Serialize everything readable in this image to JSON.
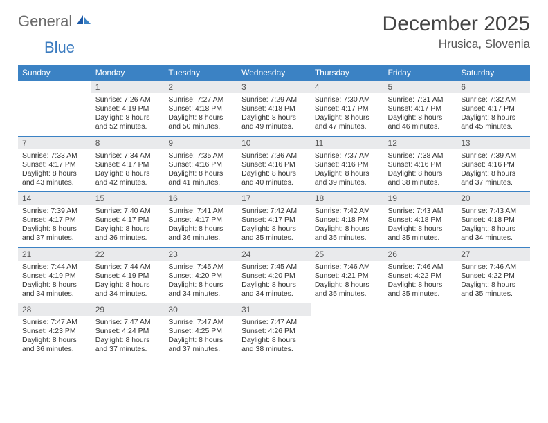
{
  "logo": {
    "general": "General",
    "blue": "Blue"
  },
  "title": "December 2025",
  "location": "Hrusica, Slovenia",
  "headers": [
    "Sunday",
    "Monday",
    "Tuesday",
    "Wednesday",
    "Thursday",
    "Friday",
    "Saturday"
  ],
  "colors": {
    "header_bg": "#3b82c4",
    "header_text": "#ffffff",
    "daynum_bg": "#e9eaec",
    "border": "#3b82c4",
    "logo_gray": "#6b6b6b",
    "logo_blue": "#3b7bbf"
  },
  "first_weekday_index": 1,
  "days": [
    {
      "n": 1,
      "sr": "7:26 AM",
      "ss": "4:19 PM",
      "dl": "8 hours and 52 minutes."
    },
    {
      "n": 2,
      "sr": "7:27 AM",
      "ss": "4:18 PM",
      "dl": "8 hours and 50 minutes."
    },
    {
      "n": 3,
      "sr": "7:29 AM",
      "ss": "4:18 PM",
      "dl": "8 hours and 49 minutes."
    },
    {
      "n": 4,
      "sr": "7:30 AM",
      "ss": "4:17 PM",
      "dl": "8 hours and 47 minutes."
    },
    {
      "n": 5,
      "sr": "7:31 AM",
      "ss": "4:17 PM",
      "dl": "8 hours and 46 minutes."
    },
    {
      "n": 6,
      "sr": "7:32 AM",
      "ss": "4:17 PM",
      "dl": "8 hours and 45 minutes."
    },
    {
      "n": 7,
      "sr": "7:33 AM",
      "ss": "4:17 PM",
      "dl": "8 hours and 43 minutes."
    },
    {
      "n": 8,
      "sr": "7:34 AM",
      "ss": "4:17 PM",
      "dl": "8 hours and 42 minutes."
    },
    {
      "n": 9,
      "sr": "7:35 AM",
      "ss": "4:16 PM",
      "dl": "8 hours and 41 minutes."
    },
    {
      "n": 10,
      "sr": "7:36 AM",
      "ss": "4:16 PM",
      "dl": "8 hours and 40 minutes."
    },
    {
      "n": 11,
      "sr": "7:37 AM",
      "ss": "4:16 PM",
      "dl": "8 hours and 39 minutes."
    },
    {
      "n": 12,
      "sr": "7:38 AM",
      "ss": "4:16 PM",
      "dl": "8 hours and 38 minutes."
    },
    {
      "n": 13,
      "sr": "7:39 AM",
      "ss": "4:16 PM",
      "dl": "8 hours and 37 minutes."
    },
    {
      "n": 14,
      "sr": "7:39 AM",
      "ss": "4:17 PM",
      "dl": "8 hours and 37 minutes."
    },
    {
      "n": 15,
      "sr": "7:40 AM",
      "ss": "4:17 PM",
      "dl": "8 hours and 36 minutes."
    },
    {
      "n": 16,
      "sr": "7:41 AM",
      "ss": "4:17 PM",
      "dl": "8 hours and 36 minutes."
    },
    {
      "n": 17,
      "sr": "7:42 AM",
      "ss": "4:17 PM",
      "dl": "8 hours and 35 minutes."
    },
    {
      "n": 18,
      "sr": "7:42 AM",
      "ss": "4:18 PM",
      "dl": "8 hours and 35 minutes."
    },
    {
      "n": 19,
      "sr": "7:43 AM",
      "ss": "4:18 PM",
      "dl": "8 hours and 35 minutes."
    },
    {
      "n": 20,
      "sr": "7:43 AM",
      "ss": "4:18 PM",
      "dl": "8 hours and 34 minutes."
    },
    {
      "n": 21,
      "sr": "7:44 AM",
      "ss": "4:19 PM",
      "dl": "8 hours and 34 minutes."
    },
    {
      "n": 22,
      "sr": "7:44 AM",
      "ss": "4:19 PM",
      "dl": "8 hours and 34 minutes."
    },
    {
      "n": 23,
      "sr": "7:45 AM",
      "ss": "4:20 PM",
      "dl": "8 hours and 34 minutes."
    },
    {
      "n": 24,
      "sr": "7:45 AM",
      "ss": "4:20 PM",
      "dl": "8 hours and 34 minutes."
    },
    {
      "n": 25,
      "sr": "7:46 AM",
      "ss": "4:21 PM",
      "dl": "8 hours and 35 minutes."
    },
    {
      "n": 26,
      "sr": "7:46 AM",
      "ss": "4:22 PM",
      "dl": "8 hours and 35 minutes."
    },
    {
      "n": 27,
      "sr": "7:46 AM",
      "ss": "4:22 PM",
      "dl": "8 hours and 35 minutes."
    },
    {
      "n": 28,
      "sr": "7:47 AM",
      "ss": "4:23 PM",
      "dl": "8 hours and 36 minutes."
    },
    {
      "n": 29,
      "sr": "7:47 AM",
      "ss": "4:24 PM",
      "dl": "8 hours and 37 minutes."
    },
    {
      "n": 30,
      "sr": "7:47 AM",
      "ss": "4:25 PM",
      "dl": "8 hours and 37 minutes."
    },
    {
      "n": 31,
      "sr": "7:47 AM",
      "ss": "4:26 PM",
      "dl": "8 hours and 38 minutes."
    }
  ],
  "labels": {
    "sunrise": "Sunrise:",
    "sunset": "Sunset:",
    "daylight": "Daylight:"
  }
}
